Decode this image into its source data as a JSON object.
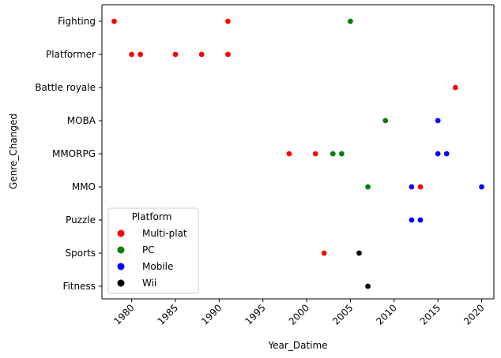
{
  "chart_data": {
    "type": "scatter",
    "xlabel": "Year_Datime",
    "ylabel": "Genre_Changed",
    "xlim": [
      1976.6,
      2021.4
    ],
    "x_ticks": [
      "1980",
      "1985",
      "1990",
      "1995",
      "2000",
      "2005",
      "2010",
      "2015",
      "2020"
    ],
    "categories": [
      "Fighting",
      "Platformer",
      "Battle royale",
      "MOBA",
      "MMORPG",
      "MMO",
      "Puzzle",
      "Sports",
      "Fitness"
    ],
    "grid": false,
    "legend": {
      "title": "Platform",
      "placement": "lower-left"
    },
    "series": [
      {
        "name": "Multi-plat",
        "color": "#ff0000",
        "points": [
          {
            "x": 1978,
            "y": "Fighting"
          },
          {
            "x": 1991,
            "y": "Fighting"
          },
          {
            "x": 1980,
            "y": "Platformer"
          },
          {
            "x": 1981,
            "y": "Platformer"
          },
          {
            "x": 1985,
            "y": "Platformer"
          },
          {
            "x": 1988,
            "y": "Platformer"
          },
          {
            "x": 1991,
            "y": "Platformer"
          },
          {
            "x": 2017,
            "y": "Battle royale"
          },
          {
            "x": 1998,
            "y": "MMORPG"
          },
          {
            "x": 2001,
            "y": "MMORPG"
          },
          {
            "x": 2013,
            "y": "MMO"
          },
          {
            "x": 2002,
            "y": "Sports"
          }
        ]
      },
      {
        "name": "PC",
        "color": "#008000",
        "points": [
          {
            "x": 2005,
            "y": "Fighting"
          },
          {
            "x": 2009,
            "y": "MOBA"
          },
          {
            "x": 2003,
            "y": "MMORPG"
          },
          {
            "x": 2004,
            "y": "MMORPG"
          },
          {
            "x": 2007,
            "y": "MMO"
          }
        ]
      },
      {
        "name": "Mobile",
        "color": "#0000ff",
        "points": [
          {
            "x": 2015,
            "y": "MOBA"
          },
          {
            "x": 2015,
            "y": "MMORPG"
          },
          {
            "x": 2016,
            "y": "MMORPG"
          },
          {
            "x": 2012,
            "y": "MMO"
          },
          {
            "x": 2020,
            "y": "MMO"
          },
          {
            "x": 2012,
            "y": "Puzzle"
          },
          {
            "x": 2013,
            "y": "Puzzle"
          }
        ]
      },
      {
        "name": "Wii",
        "color": "#000000",
        "points": [
          {
            "x": 2006,
            "y": "Sports"
          },
          {
            "x": 2007,
            "y": "Fitness"
          }
        ]
      }
    ]
  }
}
